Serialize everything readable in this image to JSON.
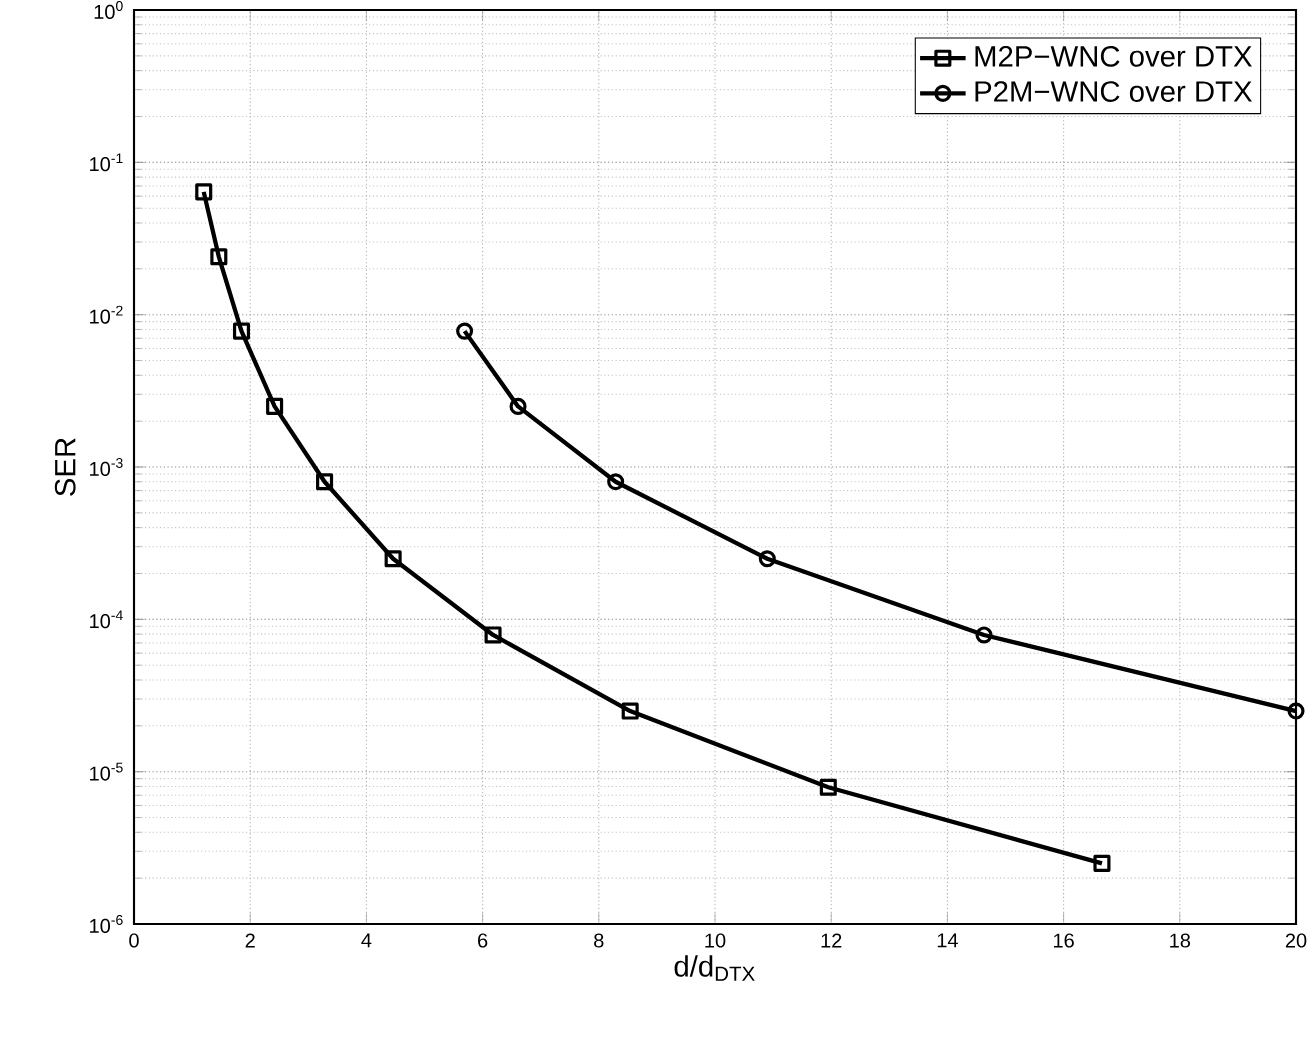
{
  "chart_data": {
    "type": "line",
    "xlabel": "d/d$_{DTX}$",
    "ylabel": "SER",
    "log": "y",
    "grid": true,
    "legend": "top right",
    "line_style": "solid",
    "xlim": [
      0,
      20
    ],
    "xticks": [
      0,
      2,
      4,
      6,
      8,
      10,
      12,
      14,
      16,
      18,
      20
    ],
    "ylim": [
      1e-06,
      1
    ],
    "yticks": [
      {
        "value": 1e-06,
        "label": "10$^{-6}$"
      },
      {
        "value": 1e-05,
        "label": "10$^{-5}$"
      },
      {
        "value": 0.0001,
        "label": "10$^{-4}$"
      },
      {
        "value": 0.001,
        "label": "10$^{-3}$"
      },
      {
        "value": 0.01,
        "label": "10$^{-2}$"
      },
      {
        "value": 0.1,
        "label": "10$^{-1}$"
      },
      {
        "value": 1,
        "label": "10$^{0}$"
      }
    ],
    "series": [
      {
        "name": "M2P−WNC over DTX",
        "color": "#000000",
        "marker": "square",
        "x": [
          1.2,
          1.46,
          1.85,
          2.42,
          3.28,
          4.46,
          6.18,
          8.54,
          11.95,
          16.66
        ],
        "values": [
          0.064,
          0.024,
          0.0078,
          0.0025,
          0.0008,
          0.00025,
          7.9e-05,
          2.5e-05,
          7.9e-06,
          2.5e-06
        ]
      },
      {
        "name": "P2M−WNC over DTX",
        "color": "#000000",
        "marker": "circle",
        "x": [
          5.69,
          6.61,
          8.29,
          10.9,
          14.63,
          20
        ],
        "values": [
          0.0078,
          0.0025,
          0.0008,
          0.00025,
          7.9e-05,
          2.5e-05
        ]
      }
    ]
  }
}
